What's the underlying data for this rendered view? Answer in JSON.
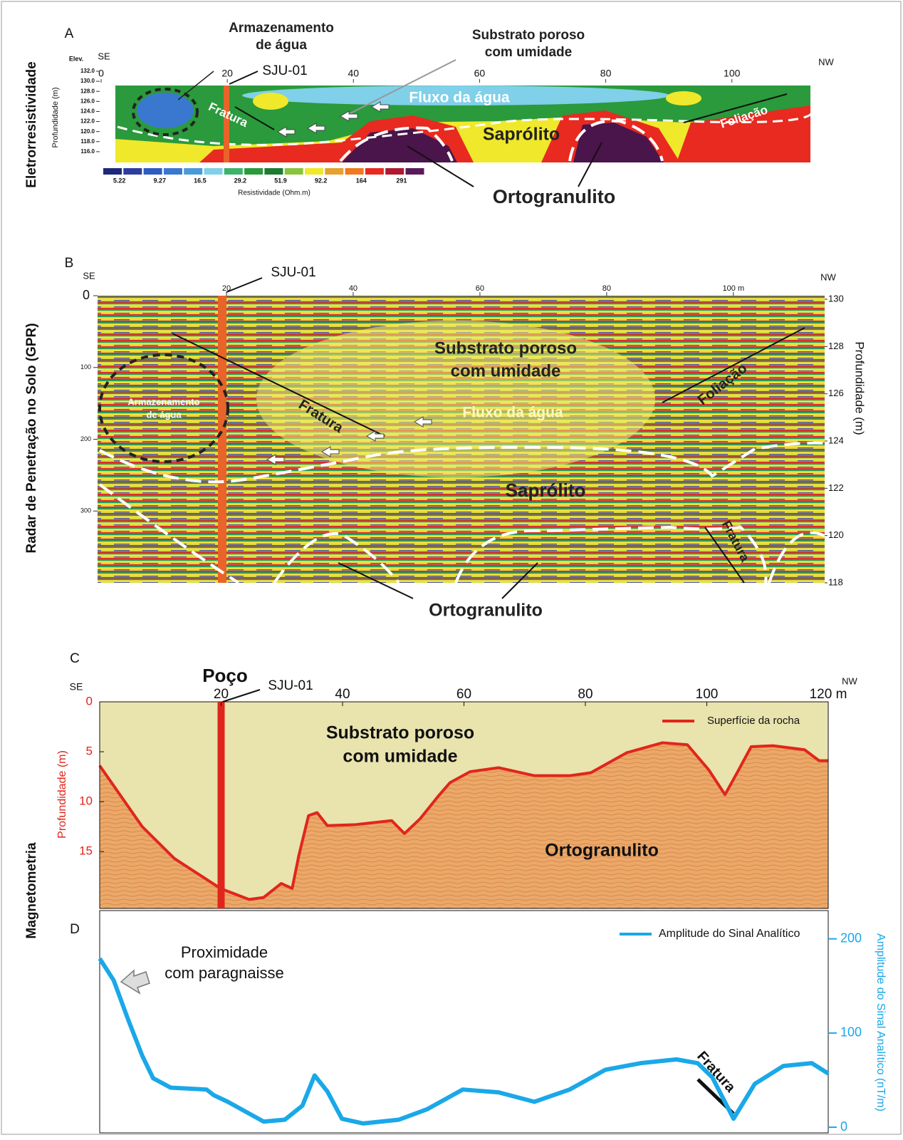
{
  "row_labels": [
    "Eletrorresistividade",
    "Radar de Penetração no Solo (GPR)",
    "Magnetometria"
  ],
  "chart_data": [
    {
      "type": "resistivity_section",
      "panel": "A",
      "elev_label": "Elev.",
      "x_dir_left": "SE",
      "x_dir_right": "NW",
      "ylabel": "Profundidade (m)",
      "xlim": [
        0,
        112
      ],
      "xticks": [
        0,
        20,
        40,
        60,
        80,
        100
      ],
      "ylim": [
        114,
        132
      ],
      "yticks": [
        {
          "value": 132,
          "label": "132.0"
        },
        {
          "value": 130,
          "label": "130.0"
        },
        {
          "value": 128,
          "label": "128.0"
        },
        {
          "value": 126,
          "label": "126.0"
        },
        {
          "value": 124,
          "label": "124.0"
        },
        {
          "value": 122,
          "label": "122.0"
        },
        {
          "value": 120,
          "label": "120.0"
        },
        {
          "value": 118,
          "label": "118.0"
        },
        {
          "value": 116,
          "label": "116.0"
        }
      ],
      "colorbar_label": "Resistividade (Ohm.m)",
      "colorbar_ticks": [
        5.22,
        9.27,
        16.5,
        29.2,
        51.9,
        92.2,
        164,
        291
      ],
      "colorbar_colors": [
        "#1b2a7a",
        "#2c3e9c",
        "#2e5cc0",
        "#3a78d0",
        "#4a9ad8",
        "#7fd0e8",
        "#3cb36a",
        "#2a9a3c",
        "#1f7a34",
        "#8ac43c",
        "#f0e82a",
        "#e8a030",
        "#f07820",
        "#e82a20",
        "#b01830",
        "#5a1a5a"
      ],
      "well": "SJU-01",
      "well_x": 20,
      "annotations": [
        [
          "Armazenamento",
          "de água"
        ],
        [
          "Substrato poroso",
          "com umidade"
        ],
        [
          "Fluxo da água"
        ],
        [
          "Fratura"
        ],
        [
          "Saprólito"
        ],
        [
          "Foliação"
        ],
        [
          "Ortogranulito"
        ]
      ]
    },
    {
      "type": "gpr_section",
      "panel": "B",
      "x_dir_left": "SE",
      "x_dir_right": "NW",
      "xlim": [
        0,
        114.4
      ],
      "xticks": [
        20,
        40,
        60,
        80,
        {
          "value": 100,
          "label": "100 m"
        }
      ],
      "ylim": [
        0,
        400
      ],
      "yticks": [
        0,
        100,
        200,
        300
      ],
      "y2lim": [
        118,
        130
      ],
      "y2ticks": [
        118,
        120,
        122,
        124,
        126,
        128,
        130
      ],
      "y2label": "Profundidade (m)",
      "well": "SJU-01",
      "well_x": 20,
      "annotations": [
        [
          "Substrato poroso",
          "com umidade"
        ],
        [
          "Armazenamento",
          "de água"
        ],
        [
          "Fratura"
        ],
        [
          "Fluxo da água"
        ],
        [
          "Foliação"
        ],
        [
          "Saprólito"
        ],
        [
          "Fratura"
        ],
        [
          "Ortogranulito"
        ]
      ]
    },
    {
      "type": "line",
      "panel": "C",
      "x_dir_left": "SE",
      "x_dir_right": "NW",
      "well_title": "Poço",
      "well": "SJU-01",
      "well_x": 20,
      "xlim": [
        0,
        120
      ],
      "xticks": [
        20,
        40,
        60,
        80,
        100,
        {
          "value": 120,
          "label": "120 m"
        }
      ],
      "ylim": [
        0,
        20.7
      ],
      "y_reversed": true,
      "yticks": [
        0,
        5,
        10,
        15
      ],
      "ylabel": "Profundidade (m)",
      "x": [
        0,
        7.0,
        12.3,
        19.9,
        24.6,
        27.0,
        29.9,
        31.7,
        32.8,
        34.4,
        35.8,
        37.5,
        42.2,
        48.1,
        50.2,
        52.8,
        55.7,
        57.7,
        61.0,
        65.7,
        71.6,
        77.4,
        80.9,
        86.8,
        92.7,
        96.8,
        100.3,
        103.0,
        105.0,
        107.3,
        110.9,
        116.1,
        118.5,
        120
      ],
      "series": [
        {
          "name": "Superfície da rocha",
          "color": "#e0261c",
          "values": [
            6.4,
            12.5,
            15.7,
            18.7,
            19.8,
            19.6,
            18.2,
            18.7,
            15.4,
            11.4,
            11.1,
            12.4,
            12.3,
            11.9,
            13.2,
            11.7,
            9.5,
            8.1,
            7.0,
            6.6,
            7.4,
            7.4,
            7.1,
            5.1,
            4.1,
            4.3,
            6.8,
            9.3,
            7.1,
            4.5,
            4.4,
            4.8,
            5.9,
            5.9
          ]
        }
      ],
      "annotations": [
        [
          "Substrato poroso",
          "com umidade"
        ],
        [
          "Ortogranulito"
        ]
      ]
    },
    {
      "type": "line",
      "panel": "D",
      "xlim": [
        0,
        120
      ],
      "y2lim": [
        -6,
        230
      ],
      "y2ticks": [
        0,
        100,
        200
      ],
      "y2label": "Amplitude do Sinal Analítico (nT/m)",
      "x": [
        0,
        2.3,
        4.7,
        7.0,
        8.8,
        11.7,
        17.6,
        18.8,
        21.1,
        27.0,
        30.5,
        33.4,
        35.4,
        37.5,
        39.9,
        43.4,
        49.3,
        53.9,
        59.8,
        65.7,
        71.6,
        77.4,
        83.3,
        89.1,
        95.0,
        98.5,
        100.9,
        104.4,
        107.9,
        112.6,
        117.3,
        120
      ],
      "series": [
        {
          "name": "Amplitude do Sinal Analítico",
          "color": "#1aa8e8",
          "axis": "y2",
          "values": [
            179,
            156,
            114,
            76,
            52,
            42,
            40,
            34,
            27,
            6,
            8,
            23,
            55,
            38,
            9,
            4,
            8,
            19,
            40,
            37,
            27,
            40,
            61,
            68,
            72,
            68,
            53,
            9,
            46,
            65,
            68,
            57
          ]
        }
      ],
      "annotations": [
        [
          "Proximidade",
          "com paragnaisse"
        ],
        [
          "Fratura"
        ]
      ]
    }
  ]
}
